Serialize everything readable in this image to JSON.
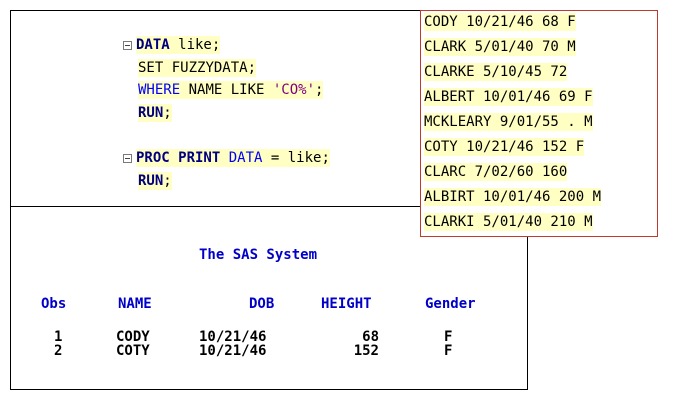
{
  "code": {
    "lines": [
      {
        "kw": "DATA",
        "rest": " like;"
      },
      {
        "kw": "SET",
        "rest": " FUZZYDATA;"
      },
      {
        "kw": "WHERE",
        "mid": " NAME LIKE ",
        "str": "'CO%'",
        "end": ";"
      },
      {
        "kw": "RUN",
        "rest": ";"
      },
      {
        "kw": "PROC PRINT",
        "kw2": " DATA",
        "rest": " = like;"
      },
      {
        "kw": "RUN",
        "rest": ";"
      }
    ]
  },
  "output": {
    "title": "The SAS System",
    "columns": [
      "Obs",
      "NAME",
      "DOB",
      "HEIGHT",
      "Gender"
    ],
    "rows": [
      [
        "1",
        "CODY",
        "10/21/46",
        "68",
        "F"
      ],
      [
        "2",
        "COTY",
        "10/21/46",
        "152",
        "F"
      ]
    ]
  },
  "raw_data": {
    "lines": [
      "CODY 10/21/46 68 F",
      "CLARK 5/01/40 70 M",
      "CLARKE 5/10/45 72",
      "ALBERT 10/01/46 69 F",
      "MCKLEARY 9/01/55 . M",
      "COTY 10/21/46 152 F",
      "CLARC 7/02/60 160",
      "ALBIRT 10/01/46 200 M",
      "CLARKI 5/01/40 210 M"
    ]
  }
}
